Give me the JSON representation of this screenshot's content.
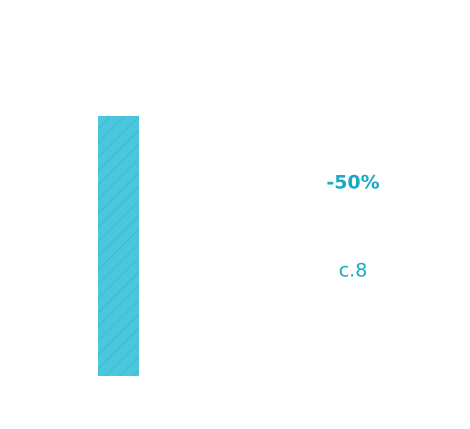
{
  "change_label": "-50%",
  "count_label": "c.8"
}
